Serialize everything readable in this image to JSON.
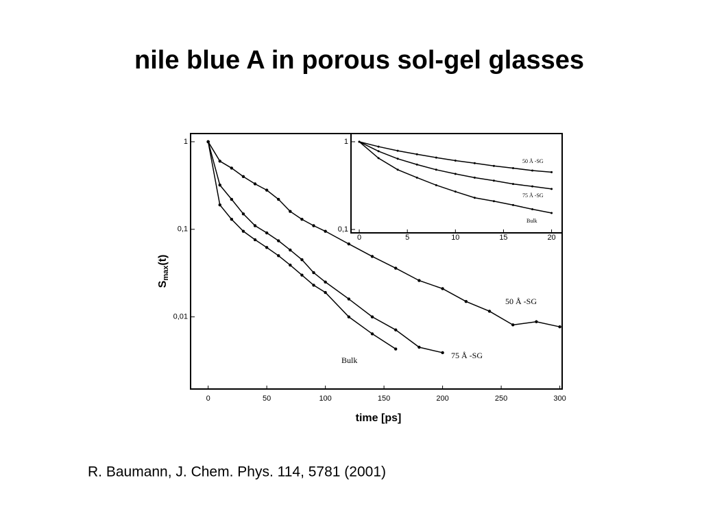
{
  "title": "nile blue A in porous sol-gel glasses",
  "citation": "R. Baumann, J. Chem. Phys. 114, 5781 (2001)",
  "chart_data": [
    {
      "type": "line",
      "yscale": "log",
      "xlabel": "time [ps]",
      "ylabel": [
        "S",
        "max",
        "(t)"
      ],
      "xlim": [
        -15,
        302
      ],
      "ylim": [
        0.0015,
        1.24
      ],
      "xticks": [
        0,
        50,
        100,
        150,
        200,
        250,
        300
      ],
      "yticks": [
        1,
        {
          "value": 0.1,
          "label": "0,1"
        },
        {
          "value": 0.01,
          "label": "0,01"
        }
      ],
      "series": [
        {
          "name": "50 Å -SG",
          "color": "#000000",
          "x": [
            0,
            10,
            20,
            30,
            40,
            50,
            60,
            70,
            80,
            90,
            100,
            120,
            140,
            160,
            180,
            200,
            220,
            240,
            260,
            280,
            300
          ],
          "values": [
            1,
            0.6,
            0.5,
            0.4,
            0.33,
            0.28,
            0.22,
            0.16,
            0.13,
            0.11,
            0.095,
            0.068,
            0.049,
            0.036,
            0.026,
            0.021,
            0.015,
            0.0116,
            0.0081,
            0.0088,
            0.0077
          ]
        },
        {
          "name": "75 Å -SG",
          "color": "#000000",
          "x": [
            0,
            10,
            20,
            30,
            40,
            50,
            60,
            70,
            80,
            90,
            100,
            120,
            140,
            160,
            180,
            200
          ],
          "values": [
            1,
            0.32,
            0.22,
            0.15,
            0.11,
            0.091,
            0.074,
            0.058,
            0.045,
            0.032,
            0.025,
            0.016,
            0.01,
            0.0071,
            0.0045,
            0.0039
          ]
        },
        {
          "name": "Bulk",
          "color": "#000000",
          "x": [
            0,
            10,
            20,
            30,
            40,
            50,
            60,
            70,
            80,
            90,
            100,
            120,
            140,
            160
          ],
          "values": [
            1,
            0.19,
            0.13,
            0.095,
            0.076,
            0.062,
            0.05,
            0.039,
            0.03,
            0.023,
            0.019,
            0.01,
            0.0064,
            0.0043
          ]
        }
      ]
    },
    {
      "type": "line",
      "yscale": "log",
      "xlim": [
        -0.86,
        21.1
      ],
      "ylim": [
        0.0915,
        1.24
      ],
      "xticks": [
        0,
        5,
        10,
        15,
        20
      ],
      "yticks": [
        1,
        {
          "value": 0.1,
          "label": "0,1"
        }
      ],
      "series": [
        {
          "name": "50 Å -SG",
          "color": "#000000",
          "x": [
            0,
            2,
            4,
            6,
            8,
            10,
            12,
            14,
            16,
            18,
            20
          ],
          "values": [
            1,
            0.88,
            0.79,
            0.72,
            0.66,
            0.61,
            0.57,
            0.53,
            0.5,
            0.47,
            0.45
          ]
        },
        {
          "name": "75 Å -SG",
          "color": "#000000",
          "x": [
            0,
            2,
            4,
            6,
            8,
            10,
            12,
            14,
            16,
            18,
            20
          ],
          "values": [
            1,
            0.78,
            0.64,
            0.55,
            0.48,
            0.43,
            0.39,
            0.36,
            0.33,
            0.31,
            0.29
          ]
        },
        {
          "name": "Bulk",
          "color": "#000000",
          "x": [
            0,
            2,
            4,
            6,
            8,
            10,
            12,
            14,
            16,
            18,
            20
          ],
          "values": [
            1,
            0.65,
            0.48,
            0.39,
            0.32,
            0.27,
            0.23,
            0.21,
            0.19,
            0.17,
            0.154
          ]
        }
      ]
    }
  ]
}
